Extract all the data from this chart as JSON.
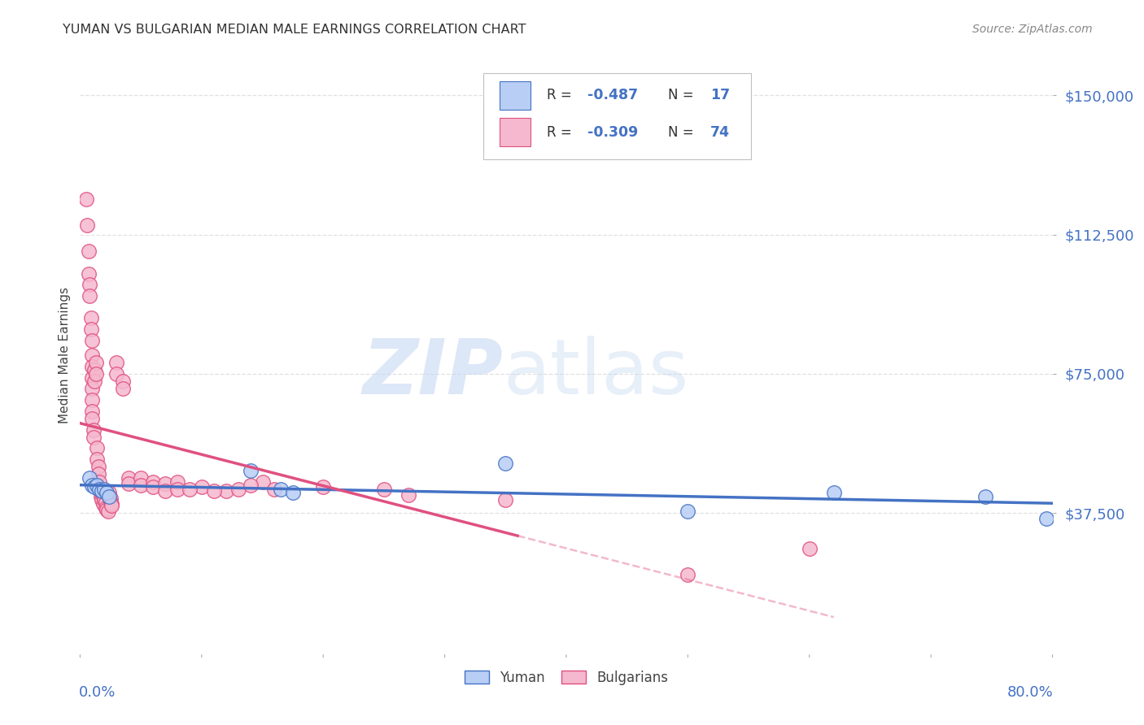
{
  "title": "YUMAN VS BULGARIAN MEDIAN MALE EARNINGS CORRELATION CHART",
  "source": "Source: ZipAtlas.com",
  "ylabel": "Median Male Earnings",
  "ymin": 0,
  "ymax": 160000,
  "xmin": 0.0,
  "xmax": 0.8,
  "yticks": [
    37500,
    75000,
    112500,
    150000
  ],
  "ytick_labels": [
    "$37,500",
    "$75,000",
    "$112,500",
    "$150,000"
  ],
  "legend": {
    "yuman": {
      "R": "-0.487",
      "N": "17",
      "fill_color": "#b8cef5",
      "edge_color": "#4472c4"
    },
    "bulgarians": {
      "R": "-0.309",
      "N": "74",
      "fill_color": "#f5b8ce",
      "edge_color": "#e05080"
    }
  },
  "yuman_points": [
    [
      0.008,
      47000
    ],
    [
      0.01,
      45000
    ],
    [
      0.012,
      44500
    ],
    [
      0.014,
      45000
    ],
    [
      0.016,
      44000
    ],
    [
      0.018,
      43500
    ],
    [
      0.02,
      44000
    ],
    [
      0.022,
      43000
    ],
    [
      0.024,
      42000
    ],
    [
      0.14,
      49000
    ],
    [
      0.165,
      44000
    ],
    [
      0.175,
      43000
    ],
    [
      0.35,
      51000
    ],
    [
      0.5,
      38000
    ],
    [
      0.62,
      43000
    ],
    [
      0.745,
      42000
    ],
    [
      0.795,
      36000
    ]
  ],
  "bulgarian_points": [
    [
      0.005,
      122000
    ],
    [
      0.006,
      115000
    ],
    [
      0.007,
      108000
    ],
    [
      0.007,
      102000
    ],
    [
      0.008,
      99000
    ],
    [
      0.008,
      96000
    ],
    [
      0.009,
      90000
    ],
    [
      0.009,
      87000
    ],
    [
      0.01,
      84000
    ],
    [
      0.01,
      80000
    ],
    [
      0.01,
      77000
    ],
    [
      0.01,
      74000
    ],
    [
      0.01,
      71000
    ],
    [
      0.01,
      68000
    ],
    [
      0.01,
      65000
    ],
    [
      0.01,
      63000
    ],
    [
      0.011,
      60000
    ],
    [
      0.011,
      58000
    ],
    [
      0.012,
      76000
    ],
    [
      0.012,
      73000
    ],
    [
      0.013,
      78000
    ],
    [
      0.013,
      75000
    ],
    [
      0.014,
      55000
    ],
    [
      0.014,
      52000
    ],
    [
      0.015,
      50000
    ],
    [
      0.015,
      48000
    ],
    [
      0.016,
      46000
    ],
    [
      0.016,
      44000
    ],
    [
      0.017,
      43000
    ],
    [
      0.017,
      42000
    ],
    [
      0.018,
      43000
    ],
    [
      0.018,
      41000
    ],
    [
      0.019,
      42000
    ],
    [
      0.019,
      40000
    ],
    [
      0.02,
      43500
    ],
    [
      0.02,
      41000
    ],
    [
      0.021,
      40500
    ],
    [
      0.021,
      39000
    ],
    [
      0.022,
      38500
    ],
    [
      0.023,
      38000
    ],
    [
      0.024,
      43000
    ],
    [
      0.024,
      42000
    ],
    [
      0.025,
      41500
    ],
    [
      0.025,
      40500
    ],
    [
      0.026,
      40000
    ],
    [
      0.026,
      39500
    ],
    [
      0.03,
      78000
    ],
    [
      0.03,
      75000
    ],
    [
      0.035,
      73000
    ],
    [
      0.035,
      71000
    ],
    [
      0.04,
      47000
    ],
    [
      0.04,
      45500
    ],
    [
      0.05,
      47000
    ],
    [
      0.05,
      45000
    ],
    [
      0.06,
      46000
    ],
    [
      0.06,
      44500
    ],
    [
      0.07,
      45500
    ],
    [
      0.07,
      43500
    ],
    [
      0.08,
      46000
    ],
    [
      0.08,
      44000
    ],
    [
      0.1,
      44500
    ],
    [
      0.12,
      43500
    ],
    [
      0.15,
      46000
    ],
    [
      0.2,
      44500
    ],
    [
      0.25,
      44000
    ],
    [
      0.27,
      42500
    ],
    [
      0.35,
      41000
    ],
    [
      0.5,
      21000
    ],
    [
      0.6,
      28000
    ],
    [
      0.09,
      44000
    ],
    [
      0.11,
      43500
    ],
    [
      0.13,
      44000
    ],
    [
      0.14,
      45000
    ],
    [
      0.16,
      44000
    ]
  ],
  "background_color": "#ffffff",
  "grid_color": "#dddddd",
  "title_color": "#333333",
  "ylabel_color": "#444444",
  "tick_color": "#4472c4"
}
